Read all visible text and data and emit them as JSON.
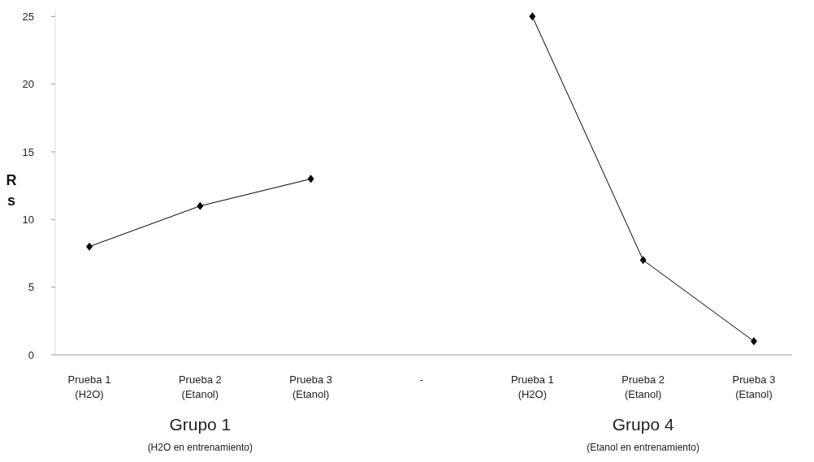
{
  "chart_data": {
    "type": "line",
    "ylabel": "Rs",
    "categories": [
      "Prueba 1\n(H2O)",
      "Prueba 2\n(Etanol)",
      "Prueba 3\n(Etanol)",
      "-",
      "Prueba 1\n(H2O)",
      "Prueba 2\n(Etanol)",
      "Prueba 3\n(Etanol)"
    ],
    "series": [
      {
        "color": "#000000",
        "values": [
          8,
          11,
          13,
          null,
          25,
          7,
          1
        ]
      }
    ],
    "ylim": [
      0,
      25.5
    ],
    "yticks": [
      0,
      5,
      10,
      15,
      20,
      25
    ],
    "marker": "diamond",
    "line_style": "solid",
    "grid": false,
    "annotations": [
      "Grupo 1",
      "(H2O en entrenamiento)",
      "Grupo 4",
      "(Etanol en entrenamiento)"
    ]
  }
}
